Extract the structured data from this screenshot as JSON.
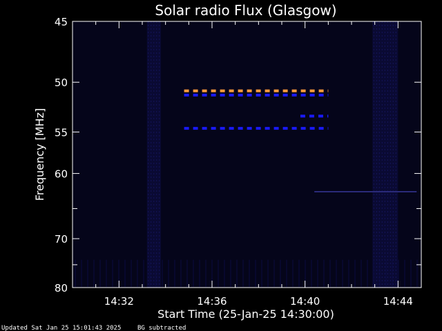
{
  "chart_data": {
    "type": "heatmap",
    "title": "Solar radio Flux (Glasgow)",
    "xlabel": "Start Time (25-Jan-25 14:30:00)",
    "ylabel": "Frequency [MHz]",
    "x_unit": "minutes after 14:30:00",
    "xlim": [
      0,
      15
    ],
    "ylim": [
      45,
      80
    ],
    "y_axis": "reciprocal (frequency decreases upward spacing)",
    "x_ticks": [
      {
        "value": 2,
        "label": "14:32"
      },
      {
        "value": 6,
        "label": "14:36"
      },
      {
        "value": 10,
        "label": "14:40"
      },
      {
        "value": 14,
        "label": "14:44"
      }
    ],
    "y_ticks": [
      {
        "value": 45,
        "label": "45"
      },
      {
        "value": 50,
        "label": "50"
      },
      {
        "value": 55,
        "label": "55"
      },
      {
        "value": 60,
        "label": "60"
      },
      {
        "value": 70,
        "label": "70"
      },
      {
        "value": 80,
        "label": "80"
      }
    ],
    "background_color": "#05051a",
    "features": [
      {
        "name": "Bright dashed emission",
        "freq_mhz": 50.8,
        "start_min": 4.8,
        "end_min": 11.0,
        "color": "#ff9a3a"
      },
      {
        "name": "Dashed emission",
        "freq_mhz": 51.2,
        "start_min": 4.8,
        "end_min": 11.0,
        "color": "#1a1aff"
      },
      {
        "name": "Dashed emission",
        "freq_mhz": 53.3,
        "start_min": 9.8,
        "end_min": 11.0,
        "color": "#1a1aff"
      },
      {
        "name": "Dashed emission",
        "freq_mhz": 54.6,
        "start_min": 4.8,
        "end_min": 11.0,
        "color": "#1a1aff"
      },
      {
        "name": "Faint drift",
        "freq_mhz": 62.5,
        "start_min": 10.4,
        "end_min": 14.8,
        "color": "#2a2a7a"
      }
    ],
    "interference_bands": [
      {
        "start_min": 3.2,
        "end_min": 3.8
      },
      {
        "start_min": 12.9,
        "end_min": 14.0
      }
    ]
  },
  "footer": {
    "updated": "Updated Sat Jan 25 15:01:43 2025",
    "note": "BG subtracted"
  }
}
